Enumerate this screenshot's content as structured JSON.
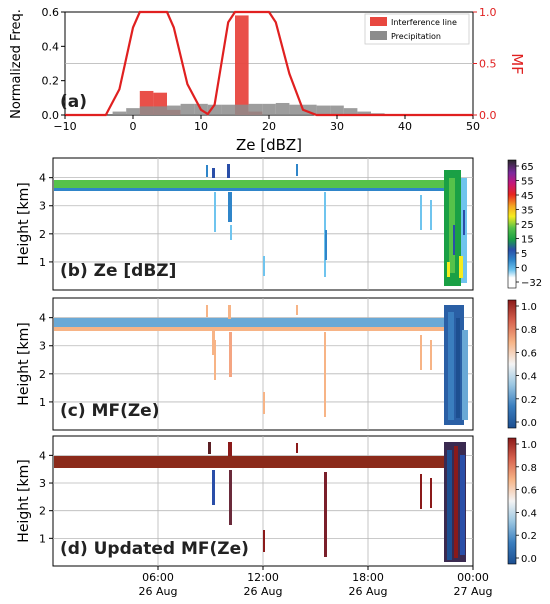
{
  "chart_data": [
    {
      "type": "bar",
      "panel_label": "(a)",
      "xlabel": "Ze [dBZ]",
      "ylabel": "Normalized Freq.",
      "y2label": "MF",
      "xlim": [
        -10,
        50
      ],
      "ylim": [
        0,
        0.6
      ],
      "y2lim": [
        0,
        1.0
      ],
      "xticks": [
        "−10",
        "0",
        "10",
        "20",
        "30",
        "40",
        "50"
      ],
      "yticks": [
        "0.0",
        "0.2",
        "0.4",
        "0.6"
      ],
      "y2ticks": [
        "0.0",
        "0.5",
        "1.0"
      ],
      "grid": "horizontal",
      "legend": "top-right",
      "bin_width": 2,
      "series": [
        {
          "name": "Interference line",
          "color": "#e8473f",
          "bins": [
            [
              2,
              0.14
            ],
            [
              4,
              0.13
            ],
            [
              6,
              0.03
            ],
            [
              16,
              0.58
            ],
            [
              18,
              0.02
            ]
          ]
        },
        {
          "name": "Precipitation",
          "color": "#8c8c8c",
          "bins": [
            [
              -2,
              0.02
            ],
            [
              0,
              0.04
            ],
            [
              2,
              0.05
            ],
            [
              4,
              0.05
            ],
            [
              6,
              0.055
            ],
            [
              8,
              0.065
            ],
            [
              10,
              0.065
            ],
            [
              12,
              0.06
            ],
            [
              14,
              0.06
            ],
            [
              16,
              0.06
            ],
            [
              18,
              0.065
            ],
            [
              20,
              0.065
            ],
            [
              22,
              0.07
            ],
            [
              24,
              0.06
            ],
            [
              26,
              0.06
            ],
            [
              28,
              0.055
            ],
            [
              30,
              0.055
            ],
            [
              32,
              0.04
            ],
            [
              34,
              0.02
            ],
            [
              36,
              0.01
            ],
            [
              38,
              0.005
            ]
          ]
        },
        {
          "name": "MF",
          "color": "#e02020",
          "type": "line",
          "axis": "right",
          "curve": [
            [
              -10,
              0.0
            ],
            [
              -4,
              0.0
            ],
            [
              -2,
              0.25
            ],
            [
              0,
              0.85
            ],
            [
              1,
              1.0
            ],
            [
              5,
              1.0
            ],
            [
              6,
              0.85
            ],
            [
              8,
              0.3
            ],
            [
              10,
              0.05
            ],
            [
              11,
              0.01
            ],
            [
              12,
              0.1
            ],
            [
              13,
              0.5
            ],
            [
              14,
              0.9
            ],
            [
              15,
              1.0
            ],
            [
              20,
              1.0
            ],
            [
              21,
              0.9
            ],
            [
              23,
              0.4
            ],
            [
              25,
              0.05
            ],
            [
              27,
              0.0
            ],
            [
              50,
              0.0
            ]
          ]
        }
      ]
    },
    {
      "type": "heatmap",
      "panel_label": "(b) Ze [dBZ]",
      "ylabel": "Height [km]",
      "yticks": [
        "1",
        "2",
        "3",
        "4"
      ],
      "ylim": [
        0,
        4.7
      ],
      "colorbar_ticks": [
        "65",
        "55",
        "45",
        "35",
        "25",
        "15",
        "5",
        "0",
        "−32"
      ],
      "colormap": [
        "#ffffff",
        "#6fc4ee",
        "#2f85c9",
        "#2a4ea8",
        "#1aa045",
        "#56c24a",
        "#f6ec1e",
        "#f5a623",
        "#e8241e",
        "#c4167c",
        "#7c2a9e",
        "#2a2a2a"
      ]
    },
    {
      "type": "heatmap",
      "panel_label": "(c) MF(Ze)",
      "ylabel": "Height [km]",
      "yticks": [
        "1",
        "2",
        "3",
        "4"
      ],
      "ylim": [
        0,
        4.7
      ],
      "colorbar_ticks": [
        "1.0",
        "0.8",
        "0.6",
        "0.4",
        "0.2",
        "0.0"
      ],
      "colormap": [
        "#1d4f91",
        "#3a7ebf",
        "#9cc7e2",
        "#f4f4f4",
        "#f7b486",
        "#d6604d",
        "#8b1a1a"
      ]
    },
    {
      "type": "heatmap",
      "panel_label": "(d) Updated MF(Ze)",
      "ylabel": "Height [km]",
      "yticks": [
        "1",
        "2",
        "3",
        "4"
      ],
      "ylim": [
        0,
        4.7
      ],
      "colorbar_ticks": [
        "1.0",
        "0.8",
        "0.6",
        "0.4",
        "0.2",
        "0.0"
      ],
      "colormap": [
        "#1d4f91",
        "#3a7ebf",
        "#9cc7e2",
        "#f4f4f4",
        "#f7b486",
        "#d6604d",
        "#8b1a1a"
      ]
    }
  ],
  "time_axis": {
    "ticks": [
      {
        "time": "06:00",
        "date": "26 Aug"
      },
      {
        "time": "12:00",
        "date": "26 Aug"
      },
      {
        "time": "18:00",
        "date": "26 Aug"
      },
      {
        "time": "00:00",
        "date": "27 Aug"
      }
    ]
  }
}
